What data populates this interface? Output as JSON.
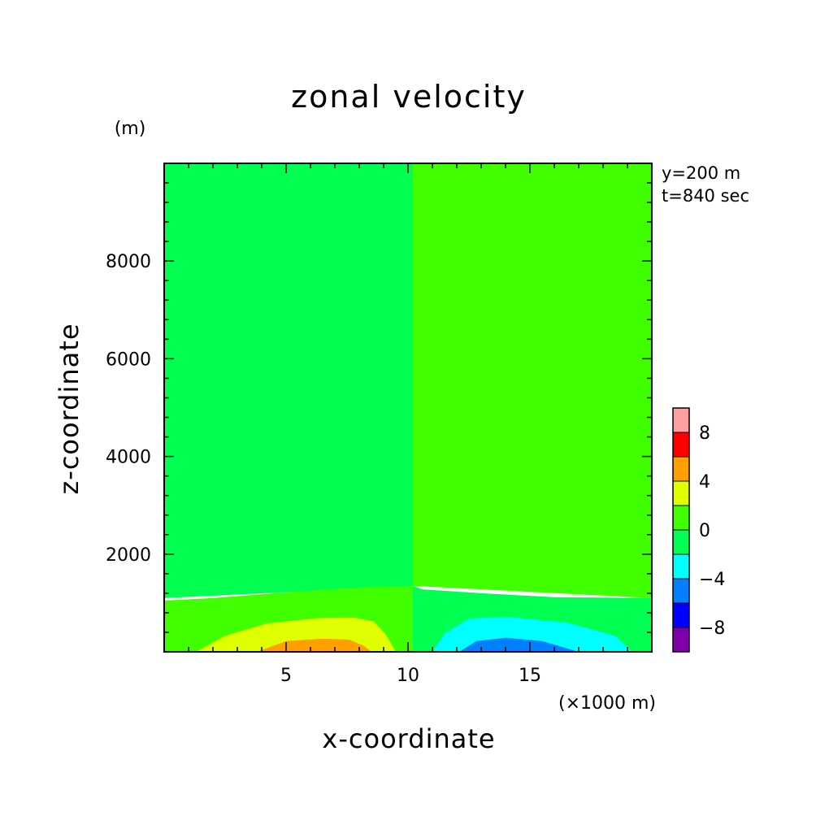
{
  "chart_data": {
    "type": "heatmap",
    "title": "zonal velocity",
    "xlabel": "x-coordinate",
    "ylabel": "z-coordinate",
    "x_unit": "(×1000 m)",
    "y_unit": "(m)",
    "annotations": [
      "y=200 m",
      "t=840 sec"
    ],
    "xlim": [
      0,
      20
    ],
    "ylim": [
      0,
      10000
    ],
    "x_ticks": [
      5,
      10,
      15
    ],
    "y_ticks": [
      2000,
      4000,
      6000,
      8000
    ],
    "colorbar": {
      "levels": [
        -10,
        -8,
        -6,
        -4,
        -2,
        0,
        2,
        4,
        6,
        8,
        10
      ],
      "tick_labels": [
        -8,
        -4,
        0,
        4,
        8
      ],
      "colors": [
        "#7f00aa",
        "#0000ff",
        "#0080ff",
        "#00ffff",
        "#00ff50",
        "#40ff00",
        "#e0ff00",
        "#ffa000",
        "#ff0000",
        "#ffa0a0"
      ]
    },
    "contours": [
      {
        "level": "-2 to 0",
        "color": "#00ff50",
        "points": [
          [
            0,
            10000
          ],
          [
            10.2,
            10000
          ],
          [
            10.2,
            1350
          ],
          [
            0,
            1100
          ]
        ]
      },
      {
        "level": "0 to 2",
        "color": "#40ff00",
        "points": [
          [
            10.2,
            10000
          ],
          [
            20,
            10000
          ],
          [
            20,
            1100
          ],
          [
            10.2,
            1350
          ]
        ]
      },
      {
        "level": "0 to 2",
        "color": "#40ff00",
        "points": [
          [
            0,
            0
          ],
          [
            0,
            1050
          ],
          [
            2,
            1100
          ],
          [
            5,
            1220
          ],
          [
            8,
            1320
          ],
          [
            10.2,
            1350
          ],
          [
            10.2,
            0
          ]
        ]
      },
      {
        "level": "-2 to 0",
        "color": "#00ff50",
        "points": [
          [
            10.2,
            0
          ],
          [
            10.2,
            1350
          ],
          [
            10.6,
            1280
          ],
          [
            13,
            1200
          ],
          [
            16,
            1120
          ],
          [
            20,
            1100
          ],
          [
            20,
            0
          ]
        ]
      },
      {
        "level": "2 to 4",
        "color": "#e0ff00",
        "points": [
          [
            1.3,
            0
          ],
          [
            2.5,
            330
          ],
          [
            4.2,
            580
          ],
          [
            6.3,
            690
          ],
          [
            7.8,
            700
          ],
          [
            8.6,
            620
          ],
          [
            9.1,
            350
          ],
          [
            9.5,
            0
          ]
        ]
      },
      {
        "level": "4 to 6",
        "color": "#ffa000",
        "points": [
          [
            3.8,
            0
          ],
          [
            5,
            220
          ],
          [
            6.5,
            270
          ],
          [
            7.6,
            250
          ],
          [
            8.2,
            120
          ],
          [
            8.5,
            0
          ]
        ]
      },
      {
        "level": "-4 to -2",
        "color": "#00ffff",
        "points": [
          [
            11,
            0
          ],
          [
            11.5,
            380
          ],
          [
            12.5,
            680
          ],
          [
            14,
            720
          ],
          [
            16.5,
            600
          ],
          [
            18.5,
            330
          ],
          [
            19.2,
            0
          ]
        ]
      },
      {
        "level": "-6 to -4",
        "color": "#0080ff",
        "points": [
          [
            12.1,
            0
          ],
          [
            12.8,
            220
          ],
          [
            14,
            290
          ],
          [
            15.5,
            220
          ],
          [
            17,
            0
          ]
        ]
      }
    ]
  }
}
